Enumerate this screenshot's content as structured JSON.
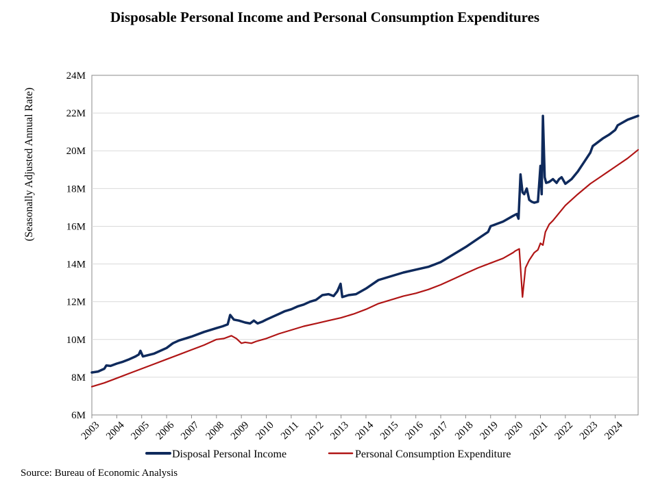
{
  "colors": {
    "income": "#0f2a5c",
    "consumption": "#b01515"
  },
  "chart_data": {
    "type": "line",
    "title": "Disposable Personal Income and Personal Consumption  Expenditures",
    "ylabel": "(Seasonally Adjusted Annual Rate)",
    "xlabel": "",
    "source": "Source: Bureau of Economic Analysis",
    "ylim": [
      6000000,
      24000000
    ],
    "xlim": [
      2003.0,
      2024.92
    ],
    "y_ticks": [
      6000000,
      8000000,
      10000000,
      12000000,
      14000000,
      16000000,
      18000000,
      20000000,
      22000000,
      24000000
    ],
    "y_tick_labels": [
      "6M",
      "8M",
      "10M",
      "12M",
      "14M",
      "16M",
      "18M",
      "20M",
      "22M",
      "24M"
    ],
    "x_ticks": [
      2003,
      2004,
      2005,
      2006,
      2007,
      2008,
      2009,
      2010,
      2011,
      2012,
      2013,
      2014,
      2015,
      2016,
      2017,
      2018,
      2019,
      2020,
      2021,
      2022,
      2023,
      2024
    ],
    "x_tick_labels": [
      "2003",
      "2004",
      "2005",
      "2006",
      "2007",
      "2008",
      "2009",
      "2010",
      "2011",
      "2012",
      "2013",
      "2014",
      "2015",
      "2016",
      "2017",
      "2018",
      "2019",
      "2020",
      "2021",
      "2022",
      "2023",
      "2024"
    ],
    "legend": {
      "position": "bottom"
    },
    "series": [
      {
        "name": "Disposal Personal Income",
        "x": [
          2003.0,
          2003.25,
          2003.5,
          2003.58,
          2003.75,
          2004.0,
          2004.25,
          2004.5,
          2004.75,
          2004.88,
          2004.95,
          2005.05,
          2005.5,
          2006.0,
          2006.25,
          2006.5,
          2006.75,
          2007.0,
          2007.5,
          2008.0,
          2008.25,
          2008.45,
          2008.55,
          2008.7,
          2008.9,
          2009.15,
          2009.35,
          2009.5,
          2009.65,
          2009.85,
          2010.0,
          2010.25,
          2010.5,
          2010.75,
          2011.0,
          2011.25,
          2011.5,
          2011.75,
          2012.0,
          2012.25,
          2012.5,
          2012.7,
          2012.85,
          2012.98,
          2013.05,
          2013.3,
          2013.6,
          2014.0,
          2014.5,
          2015.0,
          2015.5,
          2016.0,
          2016.5,
          2017.0,
          2017.5,
          2018.0,
          2018.5,
          2018.9,
          2019.0,
          2019.5,
          2019.9,
          2020.05,
          2020.12,
          2020.2,
          2020.28,
          2020.35,
          2020.45,
          2020.55,
          2020.65,
          2020.75,
          2020.9,
          2021.0,
          2021.05,
          2021.1,
          2021.17,
          2021.23,
          2021.35,
          2021.5,
          2021.65,
          2021.75,
          2021.85,
          2022.0,
          2022.1,
          2022.25,
          2022.5,
          2022.75,
          2023.0,
          2023.1,
          2023.25,
          2023.5,
          2023.75,
          2024.0,
          2024.1,
          2024.5,
          2024.92
        ],
        "y": [
          8250000,
          8300000,
          8450000,
          8620000,
          8600000,
          8720000,
          8820000,
          8950000,
          9100000,
          9200000,
          9400000,
          9100000,
          9250000,
          9550000,
          9800000,
          9950000,
          10050000,
          10150000,
          10400000,
          10600000,
          10700000,
          10800000,
          11300000,
          11050000,
          11000000,
          10900000,
          10850000,
          11000000,
          10850000,
          10950000,
          11050000,
          11200000,
          11350000,
          11500000,
          11600000,
          11750000,
          11850000,
          12000000,
          12100000,
          12350000,
          12400000,
          12300000,
          12550000,
          12950000,
          12250000,
          12350000,
          12400000,
          12700000,
          13150000,
          13350000,
          13550000,
          13700000,
          13850000,
          14100000,
          14500000,
          14900000,
          15350000,
          15700000,
          16000000,
          16250000,
          16550000,
          16650000,
          16400000,
          18750000,
          17800000,
          17700000,
          18000000,
          17400000,
          17300000,
          17250000,
          17300000,
          19200000,
          17700000,
          21850000,
          18600000,
          18300000,
          18350000,
          18500000,
          18300000,
          18500000,
          18600000,
          18250000,
          18350000,
          18500000,
          18900000,
          19400000,
          19900000,
          20250000,
          20400000,
          20650000,
          20850000,
          21100000,
          21350000,
          21650000,
          21850000
        ]
      },
      {
        "name": "Personal Consumption Expenditure",
        "x": [
          2003.0,
          2003.5,
          2004.0,
          2004.5,
          2005.0,
          2005.5,
          2006.0,
          2006.5,
          2007.0,
          2007.5,
          2008.0,
          2008.3,
          2008.6,
          2008.8,
          2009.0,
          2009.15,
          2009.4,
          2009.6,
          2010.0,
          2010.5,
          2011.0,
          2011.5,
          2012.0,
          2012.5,
          2013.0,
          2013.5,
          2014.0,
          2014.5,
          2015.0,
          2015.5,
          2016.0,
          2016.5,
          2017.0,
          2017.5,
          2018.0,
          2018.5,
          2019.0,
          2019.5,
          2019.9,
          2020.0,
          2020.15,
          2020.28,
          2020.4,
          2020.55,
          2020.75,
          2020.9,
          2021.0,
          2021.1,
          2021.2,
          2021.35,
          2021.5,
          2022.0,
          2022.5,
          2023.0,
          2023.5,
          2024.0,
          2024.5,
          2024.92
        ],
        "y": [
          7500000,
          7700000,
          7950000,
          8200000,
          8450000,
          8700000,
          8950000,
          9200000,
          9450000,
          9700000,
          10000000,
          10050000,
          10200000,
          10050000,
          9800000,
          9850000,
          9800000,
          9900000,
          10050000,
          10300000,
          10500000,
          10700000,
          10850000,
          11000000,
          11150000,
          11350000,
          11600000,
          11900000,
          12100000,
          12300000,
          12450000,
          12650000,
          12900000,
          13200000,
          13500000,
          13800000,
          14050000,
          14300000,
          14600000,
          14700000,
          14800000,
          12250000,
          13800000,
          14200000,
          14600000,
          14750000,
          15100000,
          15000000,
          15700000,
          16100000,
          16300000,
          17100000,
          17700000,
          18250000,
          18700000,
          19150000,
          19600000,
          20050000
        ]
      }
    ]
  }
}
